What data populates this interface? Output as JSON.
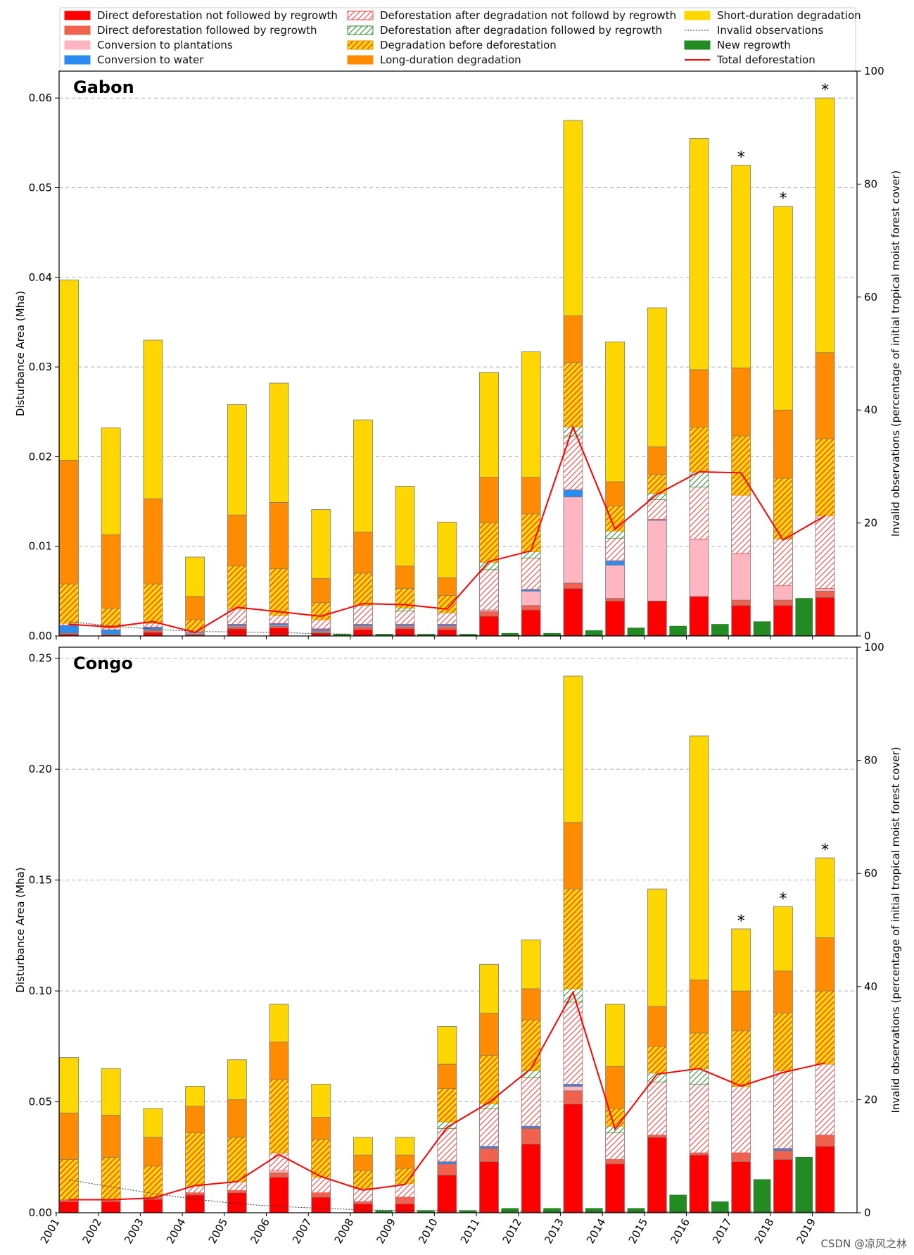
{
  "watermark": "CSDN @凉风之林",
  "years": [
    "2001",
    "2002",
    "2003",
    "2004",
    "2005",
    "2006",
    "2007",
    "2008",
    "2009",
    "2010",
    "2011",
    "2012",
    "2013",
    "2014",
    "2015",
    "2016",
    "2017",
    "2018",
    "2019"
  ],
  "legend": [
    {
      "key": "ddnr",
      "label": "Direct deforestation not followed by regrowth",
      "color": "#ff0000",
      "style": "solid"
    },
    {
      "key": "ddr",
      "label": "Direct deforestation followed by regrowth",
      "color": "#f0624d",
      "style": "solid"
    },
    {
      "key": "plant",
      "label": "Conversion to plantations",
      "color": "#ffb6c1",
      "style": "solid"
    },
    {
      "key": "water",
      "label": "Conversion to water",
      "color": "#2b8cf0",
      "style": "solid"
    },
    {
      "key": "dadnr",
      "label": "Deforestation after degradation not followd by regrowth",
      "color": "#ffffff",
      "hatch": "#ff4040",
      "style": "hatch"
    },
    {
      "key": "dadr",
      "label": "Deforestation after degradation followed by regrowth",
      "color": "#ffffff",
      "hatch": "#2e8b2e",
      "style": "hatch"
    },
    {
      "key": "dbd",
      "label": "Degradation before deforestation",
      "color": "#ffd700",
      "hatch": "#ff2a2a",
      "style": "hatch"
    },
    {
      "key": "ldd",
      "label": "Long-duration degradation",
      "color": "#ff8c00",
      "style": "solid"
    },
    {
      "key": "sdd",
      "label": "Short-duration degradation",
      "color": "#ffd700",
      "style": "solid"
    },
    {
      "key": "inv",
      "label": "Invalid observations",
      "color": "#333333",
      "style": "dotted"
    },
    {
      "key": "regrowth",
      "label": "New regrowth",
      "color": "#228b22",
      "style": "solid"
    },
    {
      "key": "total",
      "label": "Total deforestation",
      "color": "#ff0000",
      "style": "line"
    }
  ],
  "chart_data": [
    {
      "type": "bar",
      "title": "Gabon",
      "ylabel": "Disturbance Area (Mha)",
      "y2label": "Invalid observations (percentage of initial tropical moist forest cover)",
      "ylim": [
        0,
        0.063
      ],
      "yticks": [
        0.0,
        0.01,
        0.02,
        0.03,
        0.04,
        0.05,
        0.06
      ],
      "yticklabels": [
        "0.00",
        "0.01",
        "0.02",
        "0.03",
        "0.04",
        "0.05",
        "0.06"
      ],
      "y2lim": [
        0,
        100
      ],
      "y2ticks": [
        0,
        20,
        40,
        60,
        80,
        100
      ],
      "stack_order": [
        "ddnr",
        "ddr",
        "plant",
        "water",
        "dadnr",
        "dadr",
        "dbd",
        "ldd",
        "sdd"
      ],
      "series": {
        "ddnr": [
          0.0002,
          0.0001,
          0.0004,
          0.0001,
          0.0008,
          0.0009,
          0.0003,
          0.0007,
          0.0008,
          0.0007,
          0.0022,
          0.0029,
          0.0053,
          0.0039,
          0.0039,
          0.0044,
          0.0034,
          0.0034,
          0.0043
        ],
        "ddr": [
          0.0001,
          0.0001,
          0.0002,
          0.0001,
          0.0002,
          0.0002,
          0.0002,
          0.0003,
          0.0002,
          0.0003,
          0.0005,
          0.0005,
          0.0006,
          0.0003,
          0.0,
          0.0,
          0.0006,
          0.0006,
          0.0007
        ],
        "plant": [
          0.0,
          0.0,
          0.0001,
          0.0001,
          0.0001,
          0.0001,
          0.0001,
          0.0001,
          0.0001,
          0.0001,
          0.0002,
          0.0016,
          0.0096,
          0.0037,
          0.009,
          0.0064,
          0.0052,
          0.0016,
          0.0003
        ],
        "water": [
          0.0009,
          0.0005,
          0.0003,
          0.0001,
          0.0002,
          0.0002,
          0.0002,
          0.0002,
          0.0002,
          0.0002,
          0.0,
          0.0002,
          0.0008,
          0.0005,
          0.0001,
          0.0,
          0.0,
          0.0,
          0.0
        ],
        "dadnr": [
          0.0002,
          0.0002,
          0.0004,
          0.0002,
          0.0017,
          0.0009,
          0.001,
          0.0021,
          0.0015,
          0.0013,
          0.0045,
          0.0035,
          0.006,
          0.0025,
          0.0022,
          0.0058,
          0.0065,
          0.0052,
          0.0081
        ],
        "dadr": [
          0.0,
          0.0,
          0.0,
          0.0,
          0.0,
          0.0,
          0.0,
          0.0,
          0.0003,
          0.0,
          0.0008,
          0.0007,
          0.001,
          0.0008,
          0.0007,
          0.0017,
          0.0,
          0.0,
          0.0
        ],
        "dbd": [
          0.0044,
          0.0022,
          0.0044,
          0.0012,
          0.0048,
          0.0052,
          0.0019,
          0.0036,
          0.0022,
          0.0019,
          0.0044,
          0.0042,
          0.0072,
          0.0028,
          0.0021,
          0.005,
          0.0066,
          0.0068,
          0.0086
        ],
        "ldd": [
          0.0138,
          0.0082,
          0.0095,
          0.0026,
          0.0057,
          0.0074,
          0.0027,
          0.0046,
          0.0025,
          0.002,
          0.0051,
          0.0041,
          0.0052,
          0.0027,
          0.0031,
          0.0064,
          0.0076,
          0.0076,
          0.0096
        ],
        "sdd": [
          0.0201,
          0.0119,
          0.0177,
          0.0044,
          0.0123,
          0.0133,
          0.0077,
          0.0125,
          0.0089,
          0.0062,
          0.0117,
          0.014,
          0.0218,
          0.0156,
          0.0155,
          0.0258,
          0.0226,
          0.0227,
          0.0284
        ]
      },
      "new_regrowth": [
        0.0,
        0.0,
        0.0,
        0.0,
        0.0,
        0.0,
        0.0002,
        0.0002,
        0.0002,
        0.0002,
        0.0003,
        0.0003,
        0.0006,
        0.0009,
        0.0011,
        0.0013,
        0.0016,
        0.0042,
        0.0
      ],
      "total_deforestation": [
        0.0013,
        0.001,
        0.0016,
        0.0004,
        0.0032,
        0.0027,
        0.0022,
        0.0036,
        0.0035,
        0.003,
        0.0083,
        0.0095,
        0.0233,
        0.0119,
        0.0158,
        0.0183,
        0.0182,
        0.0107,
        0.0134
      ],
      "invalid_observations": [
        2.5,
        1.8,
        1.2,
        0.8,
        0.7,
        0.6,
        0.4,
        0.3,
        0.2,
        0.2,
        0.1,
        0.1,
        0.1,
        0.1,
        0.1,
        0.1,
        0.1,
        0.1,
        0.1
      ],
      "starred_years": [
        "2017",
        "2018",
        "2019"
      ],
      "star_symbol": "*"
    },
    {
      "type": "bar",
      "title": "Congo",
      "ylabel": "Disturbance Area (Mha)",
      "y2label": "Invalid observations (percentage of initial tropical moist forest cover)",
      "ylim": [
        0,
        0.255
      ],
      "yticks": [
        0.0,
        0.05,
        0.1,
        0.15,
        0.2,
        0.25
      ],
      "yticklabels": [
        "0.00",
        "0.05",
        "0.10",
        "0.15",
        "0.20",
        "0.25"
      ],
      "y2lim": [
        0,
        100
      ],
      "y2ticks": [
        0,
        20,
        40,
        60,
        80,
        100
      ],
      "stack_order": [
        "ddnr",
        "ddr",
        "plant",
        "water",
        "dadnr",
        "dadr",
        "dbd",
        "ldd",
        "sdd"
      ],
      "series": {
        "ddnr": [
          0.005,
          0.005,
          0.006,
          0.008,
          0.009,
          0.016,
          0.007,
          0.004,
          0.004,
          0.017,
          0.023,
          0.031,
          0.049,
          0.022,
          0.034,
          0.026,
          0.023,
          0.024,
          0.03
        ],
        "ddr": [
          0.001,
          0.001,
          0.001,
          0.001,
          0.001,
          0.002,
          0.002,
          0.001,
          0.003,
          0.005,
          0.006,
          0.007,
          0.006,
          0.002,
          0.001,
          0.001,
          0.004,
          0.004,
          0.005
        ],
        "plant": [
          0.0,
          0.0,
          0.0,
          0.0,
          0.0,
          0.001,
          0.0,
          0.0,
          0.0,
          0.0,
          0.0,
          0.0,
          0.002,
          0.0,
          0.0,
          0.0,
          0.0,
          0.0,
          0.0
        ],
        "water": [
          0.0,
          0.0,
          0.0,
          0.0,
          0.0,
          0.0,
          0.0,
          0.0,
          0.0,
          0.001,
          0.001,
          0.001,
          0.001,
          0.0,
          0.0,
          0.0,
          0.0,
          0.001,
          0.0
        ],
        "dadnr": [
          0.0,
          0.0,
          0.0,
          0.003,
          0.004,
          0.008,
          0.007,
          0.006,
          0.006,
          0.015,
          0.017,
          0.022,
          0.037,
          0.012,
          0.024,
          0.031,
          0.03,
          0.035,
          0.032
        ],
        "dadr": [
          0.0,
          0.0,
          0.0,
          0.0,
          0.0,
          0.0,
          0.0,
          0.0,
          0.0,
          0.003,
          0.002,
          0.003,
          0.006,
          0.003,
          0.004,
          0.007,
          0.0,
          0.0,
          0.0
        ],
        "dbd": [
          0.018,
          0.019,
          0.014,
          0.024,
          0.02,
          0.033,
          0.017,
          0.008,
          0.007,
          0.015,
          0.022,
          0.023,
          0.045,
          0.008,
          0.012,
          0.016,
          0.025,
          0.026,
          0.033
        ],
        "ldd": [
          0.021,
          0.019,
          0.013,
          0.012,
          0.017,
          0.017,
          0.01,
          0.007,
          0.006,
          0.011,
          0.019,
          0.014,
          0.03,
          0.019,
          0.018,
          0.024,
          0.018,
          0.019,
          0.024
        ],
        "sdd": [
          0.025,
          0.021,
          0.013,
          0.009,
          0.018,
          0.017,
          0.015,
          0.008,
          0.008,
          0.017,
          0.022,
          0.022,
          0.066,
          0.028,
          0.053,
          0.11,
          0.028,
          0.029,
          0.036
        ]
      },
      "new_regrowth": [
        0.0,
        0.0,
        0.0,
        0.0,
        0.0,
        0.0,
        0.0,
        0.001,
        0.001,
        0.001,
        0.002,
        0.002,
        0.002,
        0.002,
        0.008,
        0.005,
        0.015,
        0.025,
        0.0
      ],
      "total_deforestation": [
        2.3,
        2.3,
        2.6,
        4.8,
        5.5,
        10.3,
        6.4,
        4.0,
        5.0,
        15.1,
        19.5,
        25.5,
        39.0,
        14.8,
        24.5,
        25.5,
        22.4,
        24.8,
        26.5
      ],
      "total_deforestation_units": "percent-axis",
      "invalid_observations": [
        5.8,
        4.6,
        3.4,
        2.4,
        1.6,
        1.1,
        0.8,
        0.5,
        0.4,
        0.4,
        0.3,
        0.3,
        0.2,
        0.2,
        0.2,
        0.2,
        0.2,
        0.2,
        0.2
      ],
      "starred_years": [
        "2017",
        "2018",
        "2019"
      ],
      "star_symbol": "*"
    }
  ]
}
